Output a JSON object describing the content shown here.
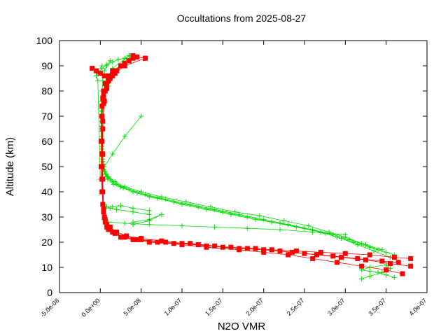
{
  "chart_data": {
    "type": "scatter",
    "title": "Occultations from 2025-08-27",
    "xlabel": "N2O VMR",
    "ylabel": "Altitude (km)",
    "xlim": [
      -5e-08,
      4e-07
    ],
    "ylim": [
      0,
      100
    ],
    "x_tick_labels": [
      "-5.0e-08",
      "0.0e+00",
      "5.0e-08",
      "1.0e-07",
      "1.5e-07",
      "2.0e-07",
      "2.5e-07",
      "3.0e-07",
      "3.5e-07",
      "4.0e-07"
    ],
    "x_ticks": [
      -5e-08,
      0,
      5e-08,
      1e-07,
      1.5e-07,
      2e-07,
      2.5e-07,
      3e-07,
      3.5e-07,
      4e-07
    ],
    "y_tick_labels": [
      "0",
      "10",
      "20",
      "30",
      "40",
      "50",
      "60",
      "70",
      "80",
      "90",
      "100"
    ],
    "y_ticks": [
      0,
      10,
      20,
      30,
      40,
      50,
      60,
      70,
      80,
      90,
      100
    ],
    "grid": false,
    "legend": "none",
    "series": [
      {
        "name": "green-profiles",
        "color": "#00dd00",
        "marker": "plus",
        "profiles": [
          {
            "x": [
              3.5e-07,
              3.3e-07,
              3.1e-07,
              2.9e-07,
              2.7e-07,
              2.4e-07,
              2.1e-07,
              1.8e-07,
              1.5e-07,
              1.2e-07,
              9e-08,
              6e-08,
              4e-08,
              2.5e-08,
              1.5e-08,
              8e-09,
              5e-09,
              3e-09,
              2e-09,
              1.5e-09,
              1e-09,
              1e-09,
              1e-09,
              1.5e-09,
              2e-09,
              3e-09,
              5e-09,
              8e-09,
              1.2e-08
            ],
            "y": [
              16,
              18,
              20,
              22,
              24,
              26,
              28,
              30,
              32,
              34,
              36,
              38,
              40,
              42,
              44,
              46,
              48,
              52,
              56,
              60,
              64,
              68,
              72,
              76,
              80,
              84,
              88,
              90,
              92
            ]
          },
          {
            "x": [
              3.55e-07,
              3.35e-07,
              3.15e-07,
              2.95e-07,
              2.75e-07,
              2.5e-07,
              2.2e-07,
              1.9e-07,
              1.6e-07,
              1.3e-07,
              1e-07,
              7e-08,
              4.5e-08,
              2.8e-08,
              1.6e-08,
              9e-09,
              6e-09,
              4e-09,
              3e-09,
              2e-09,
              1.5e-09,
              1e-09,
              1.5e-09,
              2e-09,
              3e-09,
              6e-09,
              1.2e-08,
              2.5e-08
            ],
            "y": [
              14,
              16.5,
              19,
              21.5,
              23.5,
              25.5,
              27.5,
              29,
              31,
              33,
              35,
              37.5,
              39.5,
              41.5,
              43,
              45,
              47,
              50,
              54,
              58,
              62,
              66,
              70,
              74,
              78,
              82,
              86,
              90
            ]
          },
          {
            "x": [
              3.45e-07,
              3.25e-07,
              3.05e-07,
              2.85e-07,
              2.6e-07,
              2.3e-07,
              2e-07,
              1.7e-07,
              1.4e-07,
              1.1e-07,
              8e-08,
              5.5e-08,
              3.5e-08,
              2e-08,
              1.2e-08,
              7e-09,
              4e-09,
              3e-09,
              2e-09,
              1e-09,
              1e-09,
              2e-09,
              4e-09,
              1e-08,
              2e-08,
              3e-08
            ],
            "y": [
              17,
              19,
              21,
              23,
              25,
              27,
              29,
              31,
              33,
              35,
              37,
              39,
              41,
              43,
              45,
              47,
              49,
              53,
              57,
              61,
              65,
              70,
              76,
              82,
              88,
              93
            ]
          },
          {
            "x": [
              3.6e-07,
              3.4e-07,
              3.2e-07,
              3e-07,
              2.8e-07,
              2.55e-07,
              2.25e-07,
              1.95e-07,
              1.65e-07,
              1.35e-07,
              1.05e-07,
              7.5e-08,
              5e-08,
              3e-08,
              1.8e-08,
              1e-08,
              6e-09,
              4e-09,
              2.5e-09,
              1.5e-09,
              1e-09,
              1.5e-09,
              3e-09,
              7e-09,
              1.5e-08,
              3.5e-08
            ],
            "y": [
              15,
              17,
              19.5,
              22,
              24,
              26.5,
              28.5,
              30.5,
              32,
              34,
              36,
              38,
              40,
              42,
              44,
              46,
              48,
              51,
              55,
              60,
              66,
              72,
              78,
              84,
              89,
              94
            ]
          },
          {
            "x": [
              3e-07,
              2.6e-07,
              2.2e-07,
              1.8e-07,
              1.4e-07,
              1e-07,
              6e-08,
              3e-08,
              1e-08,
              4e-09
            ],
            "y": [
              23,
              24,
              25,
              25.5,
              26,
              26.5,
              27,
              27.5,
              28,
              29
            ]
          },
          {
            "x": [
              6e-08,
              4e-08,
              2e-08,
              1.2e-08,
              8e-09,
              5e-09
            ],
            "y": [
              31,
              32,
              33,
              33.5,
              34,
              35
            ]
          },
          {
            "x": [
              1.5e-08,
              2.5e-08,
              4e-08,
              6e-08
            ],
            "y": [
              34,
              34.5,
              33.5,
              32.5
            ]
          },
          {
            "x": [
              4e-08,
              6e-08,
              7.5e-08,
              6e-08,
              4e-08
            ],
            "y": [
              27,
              28.5,
              31,
              29,
              28
            ]
          },
          {
            "x": [
              3.6e-07,
              3.5e-07,
              3.4e-07,
              3.3e-07,
              3.2e-07,
              3.3e-07,
              3.5e-07
            ],
            "y": [
              6,
              7,
              8,
              8.5,
              9,
              10,
              11
            ]
          },
          {
            "x": [
              3.2e-07,
              3.3e-07,
              3.45e-07,
              3.55e-07,
              3.5e-07
            ],
            "y": [
              5.5,
              6.5,
              8,
              9.5,
              11
            ]
          },
          {
            "x": [
              5e-08,
              3e-08,
              1.5e-08,
              5e-09,
              0,
              -3e-09,
              -5e-09,
              -3e-09,
              2e-09
            ],
            "y": [
              70,
              62,
              55,
              50,
              45,
              84,
              86,
              88,
              90
            ]
          },
          {
            "x": [
              -5e-09,
              -2e-09,
              2e-09,
              8e-09,
              1.5e-08,
              2.2e-08,
              3e-08,
              3.6e-08
            ],
            "y": [
              86,
              87.5,
              89,
              90.5,
              91.5,
              92.5,
              93,
              94
            ]
          }
        ]
      },
      {
        "name": "red-profiles",
        "color": "#ff0000",
        "marker": "square",
        "profiles": [
          {
            "x": [
              3.8e-07,
              3.6e-07,
              3.3e-07,
              3e-07,
              2.7e-07,
              2.4e-07,
              2.1e-07,
              1.8e-07,
              1.5e-07,
              1.2e-07,
              9e-08,
              6e-08,
              4e-08,
              2.5e-08,
              1.5e-08,
              8e-09,
              5e-09,
              3e-09,
              2e-09,
              2e-09,
              2e-09,
              2e-09,
              3e-09,
              4e-09,
              6e-09,
              1e-08,
              1.5e-08,
              2.5e-08
            ],
            "y": [
              13.5,
              14,
              15,
              15.5,
              16,
              16.5,
              17,
              17.5,
              18,
              19,
              19.5,
              20,
              21,
              22,
              24,
              26,
              30,
              40,
              50,
              60,
              70,
              74,
              77,
              80,
              83,
              86,
              88,
              90
            ]
          },
          {
            "x": [
              3.8e-07,
              3.55e-07,
              3.25e-07,
              2.95e-07,
              2.65e-07,
              2.35e-07,
              2e-07,
              1.7e-07,
              1.4e-07,
              1.1e-07,
              8e-08,
              5e-08,
              3e-08,
              1.8e-08,
              1e-08,
              6e-09,
              4e-09,
              3e-09,
              3e-09,
              3e-09,
              4e-09,
              6e-09,
              1e-08,
              1.8e-08,
              3e-08,
              5.5e-08
            ],
            "y": [
              10.5,
              11.5,
              13,
              14,
              15,
              16,
              17,
              17.5,
              18.5,
              19.5,
              20,
              21,
              22,
              23.5,
              25,
              28,
              33,
              45,
              55,
              65,
              75,
              80,
              84,
              87,
              90,
              93
            ]
          },
          {
            "x": [
              3.7e-07,
              3.5e-07,
              3.2e-07,
              2.9e-07,
              2.6e-07,
              2.3e-07,
              2e-07,
              1.7e-07,
              1.3e-07,
              1e-07,
              7e-08,
              4.5e-08,
              2.8e-08,
              1.5e-08,
              8e-09,
              4e-09,
              2e-09,
              1e-09,
              1e-09,
              2e-09,
              4e-09,
              8e-09,
              1.5e-08,
              3e-08,
              4e-08
            ],
            "y": [
              7.5,
              9,
              10.5,
              12,
              13.5,
              15,
              16,
              17,
              18,
              19,
              20,
              21,
              22,
              24,
              27,
              32,
              40,
              50,
              60,
              70,
              78,
              83,
              87,
              91,
              94
            ]
          },
          {
            "x": [
              3.65e-07,
              3.45e-07,
              3.15e-07,
              2.85e-07,
              2.5e-07,
              2.2e-07,
              1.9e-07,
              1.6e-07,
              1.3e-07,
              1e-07,
              7.5e-08,
              5e-08,
              3.2e-08,
              2e-08,
              1.2e-08,
              6e-09,
              3e-09,
              2e-09,
              2e-09,
              3e-09,
              5e-09,
              8e-09,
              1.2e-08,
              2e-08,
              3.5e-08
            ],
            "y": [
              12,
              12.5,
              13.5,
              14.5,
              15.5,
              16.5,
              17.5,
              18,
              18.5,
              19.5,
              20.5,
              21.5,
              22.5,
              24,
              26,
              29,
              35,
              45,
              55,
              68,
              76,
              81,
              85,
              88,
              92
            ]
          },
          {
            "x": [
              -1e-08,
              -5e-09,
              0,
              5e-09,
              1e-08,
              1.5e-08,
              2e-08,
              2.5e-08,
              3e-08,
              3.5e-08,
              4e-08,
              4.5e-08,
              5.5e-08
            ],
            "y": [
              89,
              88,
              87,
              86,
              85,
              86,
              88,
              90,
              91,
              92,
              93,
              93.5,
              93
            ]
          }
        ]
      }
    ]
  }
}
